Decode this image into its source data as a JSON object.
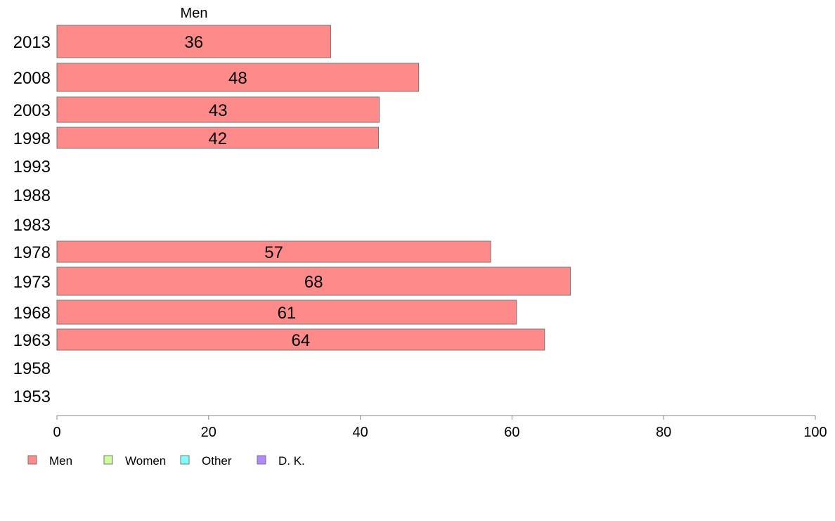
{
  "chart_data": {
    "type": "bar",
    "orientation": "horizontal",
    "series_title": "Men",
    "categories": [
      "2013",
      "2008",
      "2003",
      "1998",
      "1993",
      "1988",
      "1983",
      "1978",
      "1973",
      "1968",
      "1963",
      "1958",
      "1953"
    ],
    "series": [
      {
        "name": "Men",
        "color": "#ff8a8a",
        "values": [
          36.1,
          47.7,
          42.5,
          42.4,
          null,
          null,
          null,
          57.2,
          67.7,
          60.6,
          64.3,
          null,
          null
        ],
        "labels": [
          "36",
          "48",
          "43",
          "42",
          "",
          "",
          "",
          "57",
          "68",
          "61",
          "64",
          "",
          ""
        ]
      }
    ],
    "xlim": [
      0,
      100
    ],
    "xticks": [
      0,
      20,
      40,
      60,
      80,
      100
    ],
    "xtick_labels": [
      "0",
      "20",
      "40",
      "60",
      "80",
      "100"
    ],
    "grid": false,
    "legend": {
      "position": "bottom-left",
      "entries": [
        {
          "label": "Men",
          "color": "#ff8a8a"
        },
        {
          "label": "Women",
          "color": "#ccff99"
        },
        {
          "label": "Other",
          "color": "#80ffff"
        },
        {
          "label": "D. K.",
          "color": "#b388ff"
        }
      ]
    }
  }
}
